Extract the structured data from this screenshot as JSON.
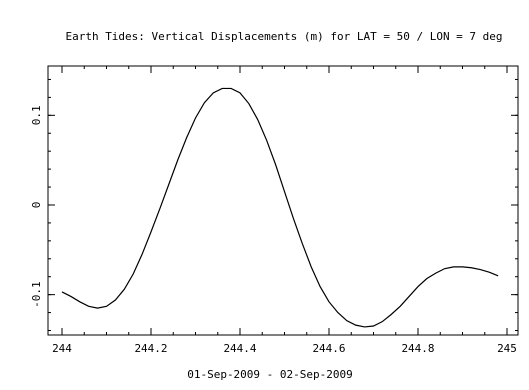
{
  "chart_data": {
    "type": "line",
    "title": "Earth Tides: Vertical Displacements (m) for LAT = 50 / LON =   7 deg",
    "xlabel": "01-Sep-2009 - 02-Sep-2009",
    "ylabel": "",
    "xlim": [
      244,
      245
    ],
    "ylim": [
      -0.145,
      0.155
    ],
    "x_ticks": [
      244,
      244.2,
      244.4,
      244.6,
      244.8,
      245
    ],
    "x_tick_labels": [
      "244",
      "244.2",
      "244.4",
      "244.6",
      "244.8",
      "245"
    ],
    "x_minor_step": 0.05,
    "y_ticks": [
      0.1,
      0,
      -0.1
    ],
    "y_tick_labels": [
      "0.1",
      "0",
      "-0.1"
    ],
    "y_minor_step": 0.02,
    "grid": false,
    "series": [
      {
        "color": "#000000",
        "x": [
          244,
          244.02,
          244.04,
          244.06,
          244.08,
          244.1,
          244.12,
          244.14,
          244.16,
          244.18,
          244.2,
          244.22,
          244.24,
          244.26,
          244.28,
          244.3,
          244.32,
          244.34,
          244.36,
          244.38,
          244.4,
          244.42,
          244.44,
          244.46,
          244.48,
          244.5,
          244.52,
          244.54,
          244.56,
          244.58,
          244.6,
          244.62,
          244.64,
          244.66,
          244.68,
          244.7,
          244.72,
          244.74,
          244.76,
          244.78,
          244.8,
          244.82,
          244.84,
          244.86,
          244.88,
          244.9,
          244.92,
          244.94,
          244.96,
          244.98
        ],
        "y": [
          -0.097,
          -0.102,
          -0.108,
          -0.113,
          -0.115,
          -0.113,
          -0.106,
          -0.094,
          -0.077,
          -0.055,
          -0.03,
          -0.004,
          0.023,
          0.05,
          0.075,
          0.097,
          0.114,
          0.125,
          0.13,
          0.13,
          0.125,
          0.113,
          0.095,
          0.072,
          0.045,
          0.015,
          -0.015,
          -0.043,
          -0.069,
          -0.091,
          -0.108,
          -0.12,
          -0.129,
          -0.134,
          -0.136,
          -0.135,
          -0.13,
          -0.122,
          -0.113,
          -0.102,
          -0.091,
          -0.082,
          -0.076,
          -0.071,
          -0.069,
          -0.069,
          -0.07,
          -0.072,
          -0.075,
          -0.079
        ]
      }
    ]
  }
}
